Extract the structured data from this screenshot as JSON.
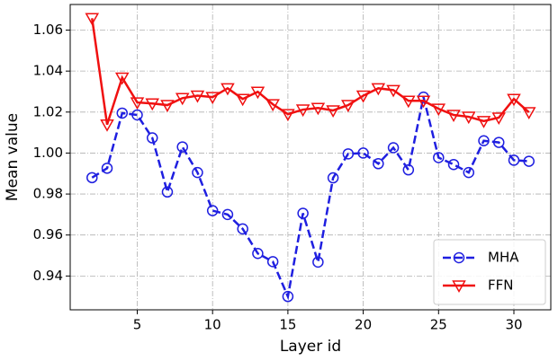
{
  "chart_data": {
    "type": "line",
    "xlabel": "Layer id",
    "ylabel": "Mean value",
    "x": [
      2,
      3,
      4,
      5,
      6,
      7,
      8,
      9,
      10,
      11,
      12,
      13,
      14,
      15,
      16,
      17,
      18,
      19,
      20,
      21,
      22,
      23,
      24,
      25,
      26,
      27,
      28,
      29,
      30,
      31
    ],
    "series": [
      {
        "name": "MHA",
        "color": "#1f1fe0",
        "linestyle": "dashed",
        "marker": "circle",
        "values": [
          0.988,
          0.9926,
          1.0195,
          1.0186,
          1.0074,
          0.981,
          1.003,
          0.9905,
          0.9719,
          0.97,
          0.963,
          0.951,
          0.947,
          0.93,
          0.9706,
          0.9468,
          0.9879,
          0.9996,
          1.0,
          0.9948,
          1.0026,
          0.9918,
          1.0273,
          0.9978,
          0.9944,
          0.9905,
          1.006,
          1.0052,
          0.9965,
          0.996
        ]
      },
      {
        "name": "FFN",
        "color": "#f01010",
        "linestyle": "solid",
        "marker": "triangle-down",
        "values": [
          1.0658,
          1.0139,
          1.0368,
          1.0247,
          1.0242,
          1.0234,
          1.0268,
          1.028,
          1.0273,
          1.0316,
          1.0264,
          1.0299,
          1.0238,
          1.019,
          1.0212,
          1.022,
          1.0208,
          1.0234,
          1.028,
          1.0316,
          1.0307,
          1.0255,
          1.0255,
          1.0216,
          1.0186,
          1.0177,
          1.0156,
          1.0173,
          1.0264,
          1.0199
        ]
      }
    ],
    "xlim": [
      0.55,
      32.45
    ],
    "ylim": [
      0.9235,
      1.0725
    ],
    "xticks": [
      5,
      10,
      15,
      20,
      25,
      30
    ],
    "yticks": [
      0.94,
      0.96,
      0.98,
      {
        "value": 1.0,
        "label": "1.00"
      },
      1.02,
      1.04,
      1.06
    ],
    "grid": true,
    "legend": "lower right"
  }
}
